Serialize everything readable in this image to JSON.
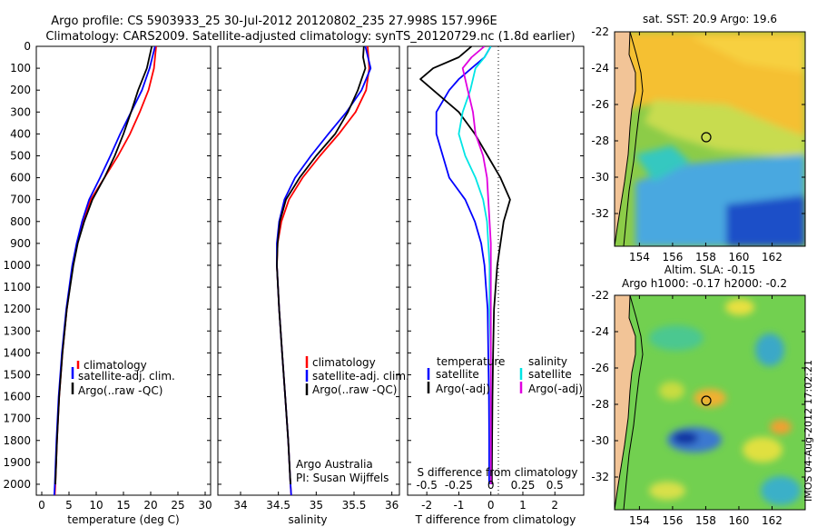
{
  "header": {
    "line1": "Argo profile: CS 5903933_25 30-Jul-2012 20120802_235 27.998S 157.996E",
    "line2": "Climatology: CARS2009. Satellite-adjusted climatology: synTS_20120729.nc (1.8d earlier)"
  },
  "depth_ticks": [
    "0",
    "100",
    "200",
    "300",
    "400",
    "500",
    "600",
    "700",
    "800",
    "900",
    "1000",
    "1100",
    "1200",
    "1300",
    "1400",
    "1500",
    "1600",
    "1700",
    "1800",
    "1900",
    "2000"
  ],
  "colors": {
    "climatology": "#ff0000",
    "satellite": "#0000ff",
    "argo": "#000000",
    "sat_salinity": "#00e5e5",
    "argo_salinity": "#e000e0"
  },
  "credits": {
    "org": "Argo Australia",
    "pi": "PI: Susan Wijffels"
  },
  "watermark": "IMOS 04-Aug-2012 17:02:21",
  "chart_data": [
    {
      "type": "line",
      "name": "temperature_profile",
      "xlabel": "temperature (deg C)",
      "xlim": [
        -1,
        31
      ],
      "ylim": [
        2050,
        0
      ],
      "xticks": [
        "0",
        "5",
        "10",
        "15",
        "20",
        "25",
        "30"
      ],
      "legend": [
        "climatology",
        "satellite-adj. clim.",
        "Argo(..raw -QC)"
      ],
      "series": [
        {
          "name": "climatology",
          "color": "#ff0000",
          "depth": [
            0,
            100,
            200,
            300,
            400,
            500,
            600,
            700,
            800,
            900,
            1000,
            1200,
            1400,
            1600,
            1800,
            2000,
            2050
          ],
          "values": [
            21.0,
            20.6,
            19.6,
            18.0,
            16.2,
            14.0,
            11.5,
            9.0,
            7.6,
            6.5,
            5.7,
            4.6,
            3.8,
            3.2,
            2.8,
            2.5,
            2.4
          ]
        },
        {
          "name": "satellite-adj. clim.",
          "color": "#0000ff",
          "depth": [
            0,
            100,
            200,
            300,
            400,
            500,
            600,
            700,
            800,
            900,
            1000,
            1200,
            1400,
            1600,
            1800,
            2000,
            2050
          ],
          "values": [
            20.8,
            19.8,
            18.4,
            16.4,
            14.4,
            12.6,
            10.7,
            8.7,
            7.4,
            6.4,
            5.6,
            4.5,
            3.7,
            3.1,
            2.7,
            2.4,
            2.3
          ]
        },
        {
          "name": "Argo(..raw -QC)",
          "color": "#000000",
          "depth": [
            0,
            100,
            200,
            300,
            400,
            500,
            600,
            700,
            800,
            900,
            1000,
            1200,
            1400,
            1600,
            1800,
            2000
          ],
          "values": [
            20.2,
            19.3,
            17.7,
            16.4,
            15.0,
            13.4,
            11.5,
            9.3,
            7.8,
            6.6,
            5.8,
            4.6,
            3.8,
            3.2,
            2.8,
            2.5
          ]
        }
      ]
    },
    {
      "type": "line",
      "name": "salinity_profile",
      "xlabel": "salinity",
      "xlim": [
        33.7,
        36.1
      ],
      "ylim": [
        2050,
        0
      ],
      "xticks": [
        "34",
        "34.5",
        "35",
        "35.5",
        "36"
      ],
      "legend": [
        "climatology",
        "satellite-adj. clim.",
        "Argo(..raw -QC)"
      ],
      "series": [
        {
          "name": "climatology",
          "color": "#ff0000",
          "depth": [
            0,
            100,
            200,
            300,
            400,
            500,
            600,
            700,
            800,
            900,
            1000,
            1200,
            1400,
            1600,
            1800,
            2000,
            2050
          ],
          "values": [
            35.68,
            35.7,
            35.66,
            35.52,
            35.3,
            35.05,
            34.82,
            34.64,
            34.54,
            34.49,
            34.48,
            34.51,
            34.55,
            34.59,
            34.63,
            34.66,
            34.67
          ]
        },
        {
          "name": "satellite-adj. clim.",
          "color": "#0000ff",
          "depth": [
            0,
            100,
            200,
            300,
            400,
            500,
            600,
            700,
            800,
            900,
            1000,
            1200,
            1400,
            1600,
            1800,
            2000,
            2050
          ],
          "values": [
            35.65,
            35.72,
            35.6,
            35.4,
            35.16,
            34.93,
            34.72,
            34.58,
            34.51,
            34.48,
            34.48,
            34.51,
            34.55,
            34.59,
            34.63,
            34.66,
            34.67
          ]
        },
        {
          "name": "Argo(..raw -QC)",
          "color": "#000000",
          "depth": [
            0,
            50,
            100,
            150,
            200,
            300,
            400,
            500,
            600,
            700,
            800,
            900,
            1000,
            1200,
            1400,
            1600,
            1800,
            2000
          ],
          "values": [
            35.63,
            35.62,
            35.65,
            35.6,
            35.55,
            35.42,
            35.25,
            35.0,
            34.78,
            34.6,
            34.52,
            34.49,
            34.48,
            34.51,
            34.55,
            34.59,
            34.63,
            34.66
          ]
        }
      ]
    },
    {
      "type": "line",
      "name": "difference_profile",
      "xlabel": "T difference from climatology",
      "xlim": [
        -2.6,
        2.9
      ],
      "ylim": [
        2050,
        0
      ],
      "xticks": [
        "-2",
        "-1",
        "0",
        "1",
        "2"
      ],
      "top_axis_label": "S difference from climatology",
      "top_xticks": [
        "-0.5",
        "-0.25",
        "0",
        "0.25",
        "0.5"
      ],
      "legend_headers": [
        "temperature",
        "salinity"
      ],
      "legend": [
        "satellite",
        "Argo(-adj)",
        "satellite",
        "Argo(-adj)"
      ],
      "series": [
        {
          "name": "T satellite",
          "color": "#0000ff",
          "depth": [
            0,
            50,
            100,
            150,
            200,
            300,
            400,
            500,
            600,
            700,
            800,
            900,
            1000,
            1100,
            1200,
            1400,
            1600,
            1800,
            2000
          ],
          "values": [
            0.0,
            -0.2,
            -0.6,
            -1.0,
            -1.3,
            -1.7,
            -1.7,
            -1.5,
            -1.3,
            -0.8,
            -0.5,
            -0.3,
            -0.2,
            -0.15,
            -0.1,
            -0.08,
            -0.06,
            -0.05,
            -0.05
          ]
        },
        {
          "name": "T Argo(-adj)",
          "color": "#000000",
          "depth": [
            0,
            50,
            100,
            150,
            200,
            300,
            400,
            500,
            600,
            700,
            800,
            900,
            1000,
            1100,
            1200,
            1400,
            1600,
            1800,
            2000
          ],
          "values": [
            -0.6,
            -1.0,
            -1.8,
            -2.2,
            -1.8,
            -1.0,
            -0.5,
            -0.1,
            0.3,
            0.6,
            0.4,
            0.3,
            0.2,
            0.15,
            0.1,
            0.07,
            0.05,
            0.04,
            0.03
          ]
        },
        {
          "name": "S satellite",
          "color": "#00e5e5",
          "depth": [
            0,
            50,
            100,
            200,
            300,
            400,
            500,
            600,
            700,
            800,
            900,
            1000,
            1200,
            1400,
            1600,
            1800,
            2000
          ],
          "values": [
            0.0,
            -0.05,
            -0.12,
            -0.16,
            -0.22,
            -0.25,
            -0.2,
            -0.12,
            -0.06,
            -0.03,
            -0.02,
            -0.01,
            -0.01,
            0.0,
            0.0,
            0.0,
            0.0
          ]
        },
        {
          "name": "S Argo(-adj)",
          "color": "#e000e0",
          "depth": [
            0,
            50,
            100,
            200,
            300,
            400,
            500,
            600,
            700,
            800,
            900,
            1000,
            1200,
            1400,
            1600,
            1800,
            2000
          ],
          "values": [
            -0.05,
            -0.15,
            -0.22,
            -0.18,
            -0.14,
            -0.12,
            -0.06,
            -0.03,
            -0.02,
            -0.01,
            0.0,
            0.0,
            0.0,
            0.0,
            0.0,
            0.0,
            0.0
          ]
        }
      ]
    },
    {
      "type": "heatmap",
      "name": "sst_map",
      "title": "sat. SST: 20.9 Argo: 19.6",
      "xticks": [
        "154",
        "156",
        "158",
        "160",
        "162"
      ],
      "yticks": [
        "-22",
        "-24",
        "-26",
        "-28",
        "-30",
        "-32"
      ],
      "xlim": [
        152.5,
        164
      ],
      "ylim": [
        -33.8,
        -22
      ],
      "argo_position": {
        "lon": 157.996,
        "lat": -27.998
      }
    },
    {
      "type": "heatmap",
      "name": "sla_map",
      "title1": "Altim. SLA: -0.15",
      "title2": "Argo h1000: -0.17 h2000: -0.2",
      "xticks": [
        "154",
        "156",
        "158",
        "160",
        "162"
      ],
      "yticks": [
        "-22",
        "-24",
        "-26",
        "-28",
        "-30",
        "-32"
      ],
      "xlim": [
        152.5,
        164
      ],
      "ylim": [
        -33.8,
        -22
      ],
      "argo_position": {
        "lon": 157.996,
        "lat": -27.998
      }
    }
  ]
}
